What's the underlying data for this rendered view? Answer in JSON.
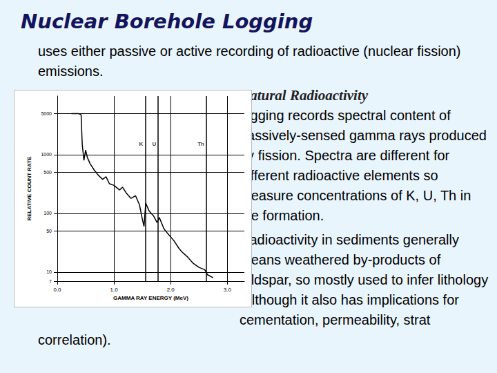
{
  "header": {
    "title": "Nuclear Borehole Logging"
  },
  "body": {
    "intro": "uses either passive or active recording of radioactive (nuclear fission) emissions.",
    "section_title": "Natural Radioactivity",
    "paragraphs": [
      "logging records spectral content of passively-sensed gamma rays produced by fission. Spectra are different for different radioactive elements so measure concentrations of K, U, Th in the formation.",
      "Radioactivity in sediments generally means weathered by-products of feldspar, so mostly used to infer lithology (although it also has implications for cementation, permeability, strat correlation)."
    ]
  },
  "chart_data": {
    "type": "line",
    "x_label": "GAMMA RAY ENERGY (MeV)",
    "y_label": "RELATIVE COUNT RATE",
    "x": [
      0.25,
      0.38,
      0.42,
      0.44,
      0.47,
      0.5,
      0.53,
      0.58,
      0.65,
      0.72,
      0.8,
      0.86,
      0.92,
      1.0,
      1.1,
      1.15,
      1.22,
      1.3,
      1.38,
      1.45,
      1.5,
      1.53,
      1.56,
      1.62,
      1.7,
      1.76,
      1.8,
      1.88,
      1.95,
      2.05,
      2.15,
      2.2,
      2.3,
      2.4,
      2.5,
      2.6,
      2.65,
      2.75
    ],
    "values": [
      5000,
      5000,
      4800,
      1500,
      800,
      1200,
      900,
      700,
      550,
      450,
      380,
      420,
      320,
      300,
      250,
      280,
      220,
      180,
      200,
      140,
      80,
      60,
      150,
      110,
      90,
      70,
      85,
      55,
      45,
      35,
      25,
      22,
      18,
      14,
      12,
      11,
      9,
      8
    ],
    "color": "#000000",
    "log": "y",
    "xlim": [
      0,
      3.3
    ],
    "xticks": [
      {
        "value": 0,
        "label": "0.0"
      },
      {
        "value": 1,
        "label": "1.0"
      },
      {
        "value": 2,
        "label": "2.0"
      },
      {
        "value": 3,
        "label": "3.0"
      }
    ],
    "ylim": [
      7,
      10000
    ],
    "yticks": [
      7,
      10,
      50,
      100,
      500,
      1000,
      5000
    ],
    "grid": true,
    "annotations": [
      {
        "label": "K",
        "x": 1.55,
        "y": 1500
      },
      {
        "label": "U",
        "x": 1.78,
        "y": 1500
      },
      {
        "label": "Th",
        "x": 2.63,
        "y": 1500
      }
    ]
  }
}
